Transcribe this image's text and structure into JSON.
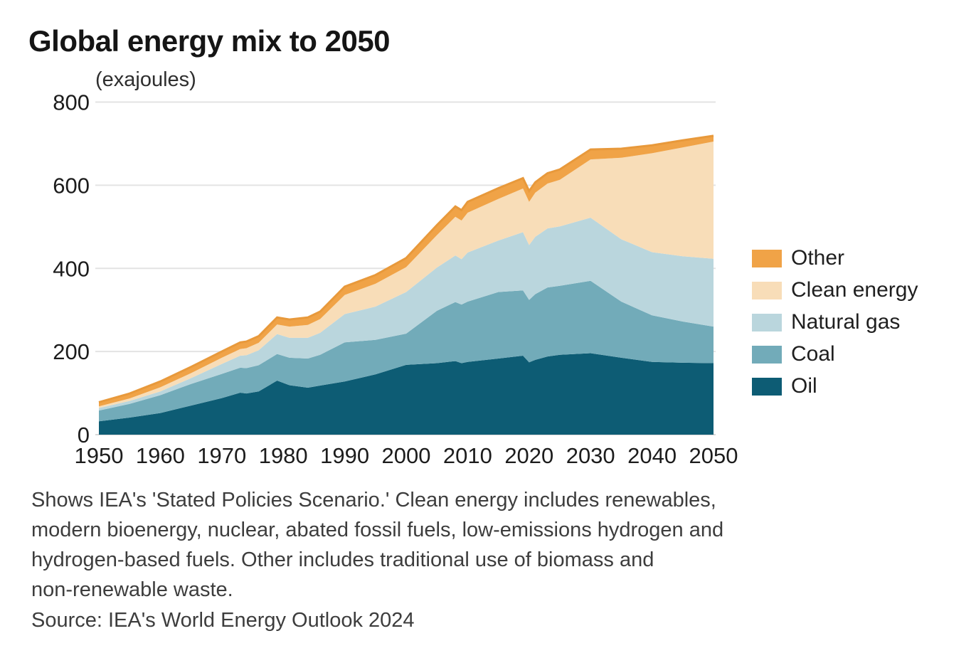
{
  "header": {
    "title": "Global energy mix to 2050",
    "subtitle": "(exajoules)"
  },
  "chart_data": {
    "type": "area",
    "stacked": true,
    "title": "Global energy mix to 2050",
    "unit_label": "(exajoules)",
    "xlabel": "",
    "ylabel": "exajoules",
    "xlim": [
      1950,
      2050
    ],
    "ylim": [
      0,
      800
    ],
    "grid": "horizontal",
    "legend_position": "right",
    "legend_order_top_to_bottom": [
      "Other",
      "Clean energy",
      "Natural gas",
      "Coal",
      "Oil"
    ],
    "xticks": [
      1950,
      1960,
      1970,
      1980,
      1990,
      2000,
      2010,
      2020,
      2030,
      2040,
      2050
    ],
    "yticks": [
      0,
      200,
      400,
      600,
      800
    ],
    "x": [
      1950,
      1955,
      1960,
      1965,
      1970,
      1973,
      1974,
      1976,
      1979,
      1981,
      1984,
      1986,
      1990,
      1995,
      2000,
      2005,
      2008,
      2009,
      2010,
      2015,
      2019,
      2020,
      2021,
      2023,
      2025,
      2030,
      2035,
      2040,
      2045,
      2050
    ],
    "series": [
      {
        "name": "Oil",
        "color": "#0d5c74",
        "values": [
          32,
          41,
          52,
          70,
          88,
          101,
          99,
          104,
          130,
          119,
          113,
          118,
          128,
          145,
          168,
          172,
          177,
          172,
          175,
          183,
          190,
          174,
          180,
          188,
          192,
          196,
          185,
          175,
          173,
          172
        ]
      },
      {
        "name": "Coal",
        "color": "#72abb9",
        "values": [
          26,
          33,
          43,
          52,
          58,
          60,
          61,
          63,
          64,
          66,
          70,
          74,
          94,
          83,
          75,
          126,
          142,
          141,
          145,
          160,
          157,
          150,
          158,
          166,
          166,
          174,
          135,
          112,
          99,
          88
        ]
      },
      {
        "name": "Natural gas",
        "color": "#bad6dd",
        "values": [
          6,
          7,
          9,
          14,
          24,
          29,
          31,
          36,
          48,
          48,
          50,
          53,
          68,
          80,
          100,
          104,
          112,
          109,
          118,
          124,
          140,
          132,
          138,
          142,
          143,
          152,
          150,
          152,
          157,
          163
        ]
      },
      {
        "name": "Clean energy",
        "color": "#f8ddb8",
        "values": [
          4,
          6,
          10,
          12,
          15,
          16,
          17,
          18,
          23,
          27,
          31,
          33,
          46,
          55,
          60,
          78,
          93,
          93,
          96,
          100,
          105,
          104,
          106,
          108,
          112,
          140,
          196,
          238,
          262,
          282
        ]
      },
      {
        "name": "Other",
        "color": "#f0a347",
        "values": [
          10,
          12,
          14,
          15,
          15,
          16,
          16,
          16,
          17,
          17,
          18,
          18,
          20,
          21,
          22,
          24,
          25,
          25,
          26,
          26,
          25,
          26,
          25,
          25,
          25,
          24,
          22,
          19,
          17,
          14
        ]
      }
    ],
    "top_stroke_color": "#e8993b",
    "gridline_color": "#e3e3e3",
    "baseline_color": "#d8d8d8",
    "tick_label_color": "#1c1c1c"
  },
  "legend": {
    "items": [
      {
        "label": "Other",
        "color": "#f0a347"
      },
      {
        "label": "Clean energy",
        "color": "#f8ddb8"
      },
      {
        "label": "Natural gas",
        "color": "#bad6dd"
      },
      {
        "label": "Coal",
        "color": "#72abb9"
      },
      {
        "label": "Oil",
        "color": "#0d5c74"
      }
    ]
  },
  "footnote_lines": [
    "Shows IEA's 'Stated Policies Scenario.' Clean energy includes renewables,",
    "modern bioenergy, nuclear, abated fossil fuels, low-emissions hydrogen and",
    "hydrogen-based fuels. Other includes traditional use of biomass and",
    "non-renewable waste."
  ],
  "source": "Source: IEA's World Energy Outlook 2024"
}
